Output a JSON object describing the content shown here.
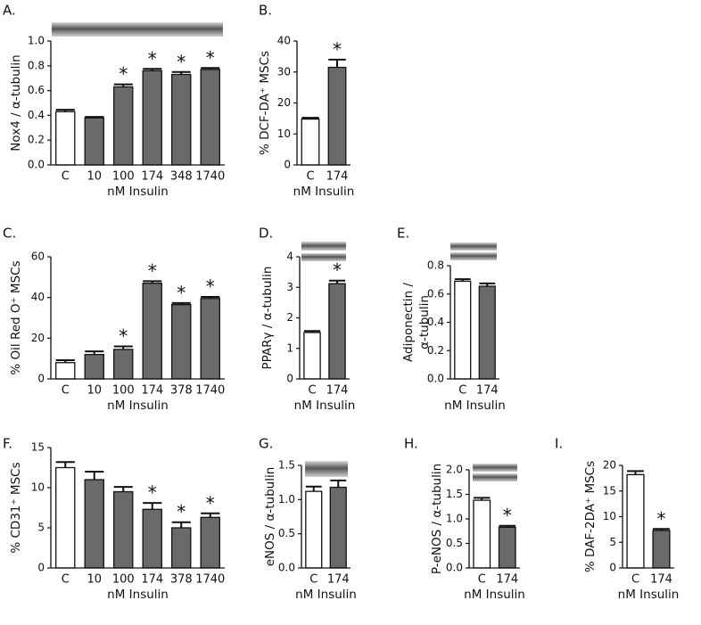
{
  "chart_data": [
    {
      "type": "bar",
      "label": "A.",
      "ylabel": "Nox4 / α-tubulin",
      "xlabel": "nM Insulin",
      "categories": [
        "C",
        "10",
        "100",
        "174",
        "348",
        "1740"
      ],
      "values": [
        0.43,
        0.38,
        0.63,
        0.76,
        0.73,
        0.77
      ],
      "errors": [
        0.015,
        0.008,
        0.02,
        0.015,
        0.02,
        0.012
      ],
      "markers": [
        null,
        null,
        "*",
        "*",
        "*",
        "*"
      ],
      "colors": [
        "#ffffff",
        "#6a6a6a",
        "#6a6a6a",
        "#6a6a6a",
        "#6a6a6a",
        "#6a6a6a"
      ],
      "ylim": [
        0,
        1
      ],
      "yticks": [
        {
          "value": 0,
          "label": "0.0"
        },
        0.2,
        0.4,
        0.6,
        0.8,
        {
          "value": 1,
          "label": "1.0"
        }
      ]
    },
    {
      "type": "bar",
      "label": "B.",
      "ylabel": "% DCF-DA⁺ MSCs",
      "xlabel": "nM Insulin",
      "categories": [
        "C",
        "174"
      ],
      "values": [
        14.8,
        31.5
      ],
      "errors": [
        0.4,
        2.5
      ],
      "markers": [
        null,
        "*"
      ],
      "colors": [
        "#ffffff",
        "#6a6a6a"
      ],
      "ylim": [
        0,
        40
      ],
      "yticks": [
        0,
        10,
        20,
        30,
        40
      ]
    },
    {
      "type": "bar",
      "label": "C.",
      "ylabel": "% Oil Red O⁺ MSCs",
      "xlabel": "nM Insulin",
      "categories": [
        "C",
        "10",
        "100",
        "174",
        "378",
        "1740"
      ],
      "values": [
        8,
        12,
        14.5,
        47,
        36.5,
        39.5
      ],
      "errors": [
        1.2,
        1.5,
        1.5,
        1,
        0.8,
        0.8
      ],
      "markers": [
        null,
        null,
        "*",
        "*",
        "*",
        "*"
      ],
      "colors": [
        "#ffffff",
        "#6a6a6a",
        "#6a6a6a",
        "#6a6a6a",
        "#6a6a6a",
        "#6a6a6a"
      ],
      "ylim": [
        0,
        60
      ],
      "yticks": [
        0,
        20,
        40,
        60
      ]
    },
    {
      "type": "bar",
      "label": "D.",
      "ylabel": "PPARγ / α-tubulin",
      "xlabel": "nM Insulin",
      "categories": [
        "C",
        "174"
      ],
      "values": [
        1.52,
        3.12
      ],
      "errors": [
        0.05,
        0.1
      ],
      "markers": [
        null,
        "*"
      ],
      "colors": [
        "#ffffff",
        "#6a6a6a"
      ],
      "ylim": [
        0,
        4
      ],
      "yticks": [
        0,
        1,
        2,
        3,
        4
      ]
    },
    {
      "type": "bar",
      "label": "E.",
      "ylabel": [
        "Adiponectin /",
        "α-tubulin"
      ],
      "xlabel": "nM Insulin",
      "categories": [
        "C",
        "174"
      ],
      "values": [
        0.69,
        0.655
      ],
      "errors": [
        0.015,
        0.02
      ],
      "markers": [
        null,
        null
      ],
      "colors": [
        "#ffffff",
        "#6a6a6a"
      ],
      "ylim": [
        0,
        0.8
      ],
      "yticks": [
        {
          "value": 0,
          "label": "0.0"
        },
        0.2,
        0.4,
        0.6,
        0.8
      ]
    },
    {
      "type": "bar",
      "label": "F.",
      "ylabel": "% CD31⁺ MSCs",
      "xlabel": "nM Insulin",
      "categories": [
        "C",
        "10",
        "100",
        "174",
        "378",
        "1740"
      ],
      "values": [
        12.5,
        11,
        9.5,
        7.3,
        5,
        6.3
      ],
      "errors": [
        0.7,
        1,
        0.6,
        0.8,
        0.7,
        0.5
      ],
      "markers": [
        null,
        null,
        null,
        "*",
        "*",
        "*"
      ],
      "colors": [
        "#ffffff",
        "#6a6a6a",
        "#6a6a6a",
        "#6a6a6a",
        "#6a6a6a",
        "#6a6a6a"
      ],
      "ylim": [
        0,
        15
      ],
      "yticks": [
        0,
        5,
        10,
        15
      ]
    },
    {
      "type": "bar",
      "label": "G.",
      "ylabel": "eNOS / α-tubulin",
      "xlabel": "nM Insulin",
      "categories": [
        "C",
        "174"
      ],
      "values": [
        1.12,
        1.18
      ],
      "errors": [
        0.07,
        0.1
      ],
      "markers": [
        null,
        null
      ],
      "colors": [
        "#ffffff",
        "#6a6a6a"
      ],
      "ylim": [
        0,
        1.5
      ],
      "yticks": [
        {
          "value": 0,
          "label": "0.0"
        },
        0.5,
        {
          "value": 1,
          "label": "1.0"
        },
        1.5
      ]
    },
    {
      "type": "bar",
      "label": "H.",
      "ylabel": "P-eNOS / α-tubulin",
      "xlabel": "nM Insulin",
      "categories": [
        "C",
        "174"
      ],
      "values": [
        1.38,
        0.83
      ],
      "errors": [
        0.05,
        0.03
      ],
      "markers": [
        null,
        "*"
      ],
      "colors": [
        "#ffffff",
        "#6a6a6a"
      ],
      "ylim": [
        0,
        2
      ],
      "yticks": [
        {
          "value": 0,
          "label": "0.0"
        },
        0.5,
        {
          "value": 1,
          "label": "1.0"
        },
        1.5,
        {
          "value": 2,
          "label": "2.0"
        }
      ]
    },
    {
      "type": "bar",
      "label": "I.",
      "ylabel": "% DAF-2DA⁺ MSCs",
      "xlabel": "nM Insulin",
      "categories": [
        "C",
        "174"
      ],
      "values": [
        18.2,
        7.3
      ],
      "errors": [
        0.7,
        0.3
      ],
      "markers": [
        null,
        "*"
      ],
      "colors": [
        "#ffffff",
        "#6a6a6a"
      ],
      "ylim": [
        0,
        20
      ],
      "yticks": [
        0,
        5,
        10,
        15,
        20
      ]
    }
  ]
}
